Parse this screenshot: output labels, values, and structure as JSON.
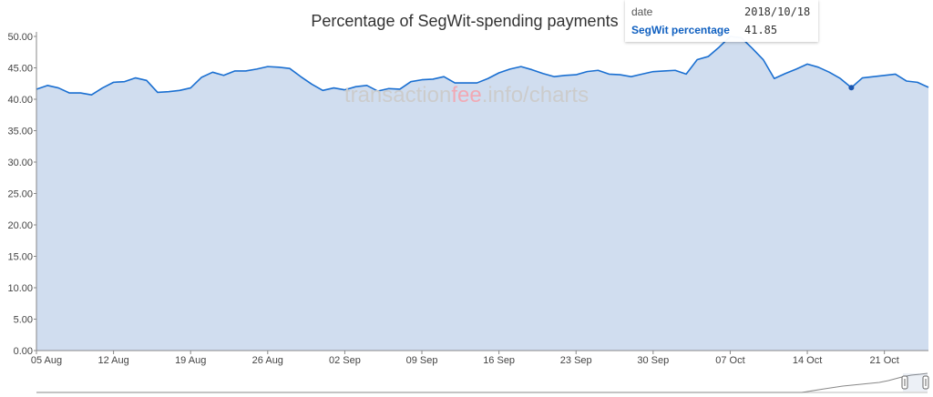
{
  "chart_data": {
    "type": "area",
    "title": "Percentage of SegWit-spending payments",
    "xlabel": "",
    "ylabel": "",
    "ylim": [
      0,
      50
    ],
    "y_ticks": [
      "0.00",
      "5.00",
      "10.00",
      "15.00",
      "20.00",
      "25.00",
      "30.00",
      "35.00",
      "40.00",
      "45.00",
      "50.00"
    ],
    "x_ticks": [
      "05 Aug",
      "12 Aug",
      "19 Aug",
      "26 Aug",
      "02 Sep",
      "09 Sep",
      "16 Sep",
      "23 Sep",
      "30 Sep",
      "07 Oct",
      "14 Oct",
      "21 Oct"
    ],
    "x_tick_dates": [
      "2018-08-05",
      "2018-08-12",
      "2018-08-19",
      "2018-08-26",
      "2018-09-02",
      "2018-09-09",
      "2018-09-16",
      "2018-09-23",
      "2018-09-30",
      "2018-10-07",
      "2018-10-14",
      "2018-10-21"
    ],
    "x_range": [
      "2018-08-05",
      "2018-10-25"
    ],
    "series": [
      {
        "name": "SegWit percentage",
        "color": "#1a6fd1",
        "fill": "#d0ddef",
        "points": [
          [
            "2018-08-05",
            41.6
          ],
          [
            "2018-08-06",
            42.2
          ],
          [
            "2018-08-07",
            41.8
          ],
          [
            "2018-08-08",
            41.0
          ],
          [
            "2018-08-09",
            41.0
          ],
          [
            "2018-08-10",
            40.7
          ],
          [
            "2018-08-11",
            41.8
          ],
          [
            "2018-08-12",
            42.7
          ],
          [
            "2018-08-13",
            42.8
          ],
          [
            "2018-08-14",
            43.4
          ],
          [
            "2018-08-15",
            43.0
          ],
          [
            "2018-08-16",
            41.1
          ],
          [
            "2018-08-17",
            41.2
          ],
          [
            "2018-08-18",
            41.4
          ],
          [
            "2018-08-19",
            41.8
          ],
          [
            "2018-08-20",
            43.5
          ],
          [
            "2018-08-21",
            44.3
          ],
          [
            "2018-08-22",
            43.8
          ],
          [
            "2018-08-23",
            44.5
          ],
          [
            "2018-08-24",
            44.5
          ],
          [
            "2018-08-25",
            44.8
          ],
          [
            "2018-08-26",
            45.2
          ],
          [
            "2018-08-27",
            45.1
          ],
          [
            "2018-08-28",
            44.9
          ],
          [
            "2018-08-29",
            43.6
          ],
          [
            "2018-08-30",
            42.4
          ],
          [
            "2018-08-31",
            41.4
          ],
          [
            "2018-09-01",
            41.8
          ],
          [
            "2018-09-02",
            41.5
          ],
          [
            "2018-09-03",
            42.0
          ],
          [
            "2018-09-04",
            42.2
          ],
          [
            "2018-09-05",
            41.3
          ],
          [
            "2018-09-06",
            41.7
          ],
          [
            "2018-09-07",
            41.6
          ],
          [
            "2018-09-08",
            42.8
          ],
          [
            "2018-09-09",
            43.1
          ],
          [
            "2018-09-10",
            43.2
          ],
          [
            "2018-09-11",
            43.6
          ],
          [
            "2018-09-12",
            42.6
          ],
          [
            "2018-09-13",
            42.6
          ],
          [
            "2018-09-14",
            42.6
          ],
          [
            "2018-09-15",
            43.3
          ],
          [
            "2018-09-16",
            44.2
          ],
          [
            "2018-09-17",
            44.8
          ],
          [
            "2018-09-18",
            45.2
          ],
          [
            "2018-09-19",
            44.7
          ],
          [
            "2018-09-20",
            44.1
          ],
          [
            "2018-09-21",
            43.6
          ],
          [
            "2018-09-22",
            43.8
          ],
          [
            "2018-09-23",
            43.9
          ],
          [
            "2018-09-24",
            44.4
          ],
          [
            "2018-09-25",
            44.6
          ],
          [
            "2018-09-26",
            44.0
          ],
          [
            "2018-09-27",
            43.9
          ],
          [
            "2018-09-28",
            43.6
          ],
          [
            "2018-09-29",
            44.0
          ],
          [
            "2018-09-30",
            44.4
          ],
          [
            "2018-10-01",
            44.5
          ],
          [
            "2018-10-02",
            44.6
          ],
          [
            "2018-10-03",
            44.0
          ],
          [
            "2018-10-04",
            46.3
          ],
          [
            "2018-10-05",
            46.8
          ],
          [
            "2018-10-06",
            48.3
          ],
          [
            "2018-10-07",
            50.0
          ],
          [
            "2018-10-08",
            49.8
          ],
          [
            "2018-10-09",
            48.1
          ],
          [
            "2018-10-10",
            46.3
          ],
          [
            "2018-10-11",
            43.3
          ],
          [
            "2018-10-12",
            44.1
          ],
          [
            "2018-10-13",
            44.8
          ],
          [
            "2018-10-14",
            45.6
          ],
          [
            "2018-10-15",
            45.1
          ],
          [
            "2018-10-16",
            44.3
          ],
          [
            "2018-10-17",
            43.3
          ],
          [
            "2018-10-18",
            41.85
          ],
          [
            "2018-10-19",
            43.4
          ],
          [
            "2018-10-20",
            43.6
          ],
          [
            "2018-10-21",
            43.8
          ],
          [
            "2018-10-22",
            44.0
          ],
          [
            "2018-10-23",
            42.9
          ],
          [
            "2018-10-24",
            42.7
          ],
          [
            "2018-10-25",
            41.9
          ]
        ]
      }
    ],
    "highlight": {
      "date": "2018-10-18",
      "value": 41.85
    },
    "grid": false,
    "legend": "none"
  },
  "watermark": {
    "part1": "transaction",
    "part2": "fee",
    "part3": ".info/charts",
    "color1": "#cccccc",
    "color2": "#f1a9b4"
  },
  "tooltip": {
    "date_label": "date",
    "date_value": "2018/10/18",
    "series_label": "SegWit percentage",
    "series_value": "41.85"
  }
}
